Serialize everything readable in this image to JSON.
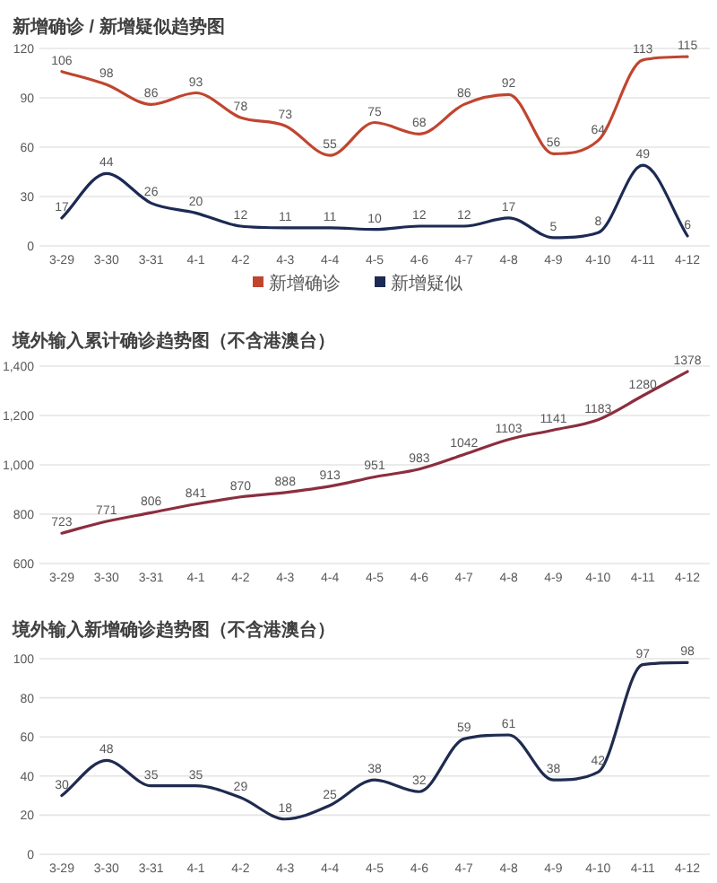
{
  "chart_data": [
    {
      "type": "line",
      "title": "新增确诊 / 新增疑似趋势图",
      "categories": [
        "3-29",
        "3-30",
        "3-31",
        "4-1",
        "4-2",
        "4-3",
        "4-4",
        "4-5",
        "4-6",
        "4-7",
        "4-8",
        "4-9",
        "4-10",
        "4-11",
        "4-12"
      ],
      "series": [
        {
          "name": "新增确诊",
          "color": "#c0452f",
          "values": [
            106,
            98,
            86,
            93,
            78,
            73,
            55,
            75,
            68,
            86,
            92,
            56,
            64,
            113,
            115
          ]
        },
        {
          "name": "新增疑似",
          "color": "#1c2a54",
          "values": [
            17,
            44,
            26,
            20,
            12,
            11,
            11,
            10,
            12,
            12,
            17,
            5,
            8,
            49,
            6
          ]
        }
      ],
      "ylim": [
        0,
        120
      ],
      "yticks": [
        0,
        30,
        60,
        90,
        120
      ],
      "grid": "y",
      "legend": "bottom",
      "data_labels": true
    },
    {
      "type": "line",
      "title": "境外输入累计确诊趋势图（不含港澳台）",
      "categories": [
        "3-29",
        "3-30",
        "3-31",
        "4-1",
        "4-2",
        "4-3",
        "4-4",
        "4-5",
        "4-6",
        "4-7",
        "4-8",
        "4-9",
        "4-10",
        "4-11",
        "4-12"
      ],
      "series": [
        {
          "color": "#8b2e3f",
          "values": [
            723,
            771,
            806,
            841,
            870,
            888,
            913,
            951,
            983,
            1042,
            1103,
            1141,
            1183,
            1280,
            1378
          ]
        }
      ],
      "ylim": [
        600,
        1400
      ],
      "yticks": [
        600,
        800,
        {
          "value": 1000,
          "label": "1,000"
        },
        {
          "value": 1200,
          "label": "1,200"
        },
        {
          "value": 1400,
          "label": "1,400"
        }
      ],
      "grid": "y",
      "data_labels": true
    },
    {
      "type": "line",
      "title": "境外输入新增确诊趋势图（不含港澳台）",
      "categories": [
        "3-29",
        "3-30",
        "3-31",
        "4-1",
        "4-2",
        "4-3",
        "4-4",
        "4-5",
        "4-6",
        "4-7",
        "4-8",
        "4-9",
        "4-10",
        "4-11",
        "4-12"
      ],
      "series": [
        {
          "color": "#1f2b4f",
          "values": [
            30,
            48,
            35,
            35,
            29,
            18,
            25,
            38,
            32,
            59,
            61,
            38,
            42,
            97,
            98
          ]
        }
      ],
      "ylim": [
        0,
        100
      ],
      "yticks": [
        0,
        20,
        40,
        60,
        80,
        100
      ],
      "grid": "y",
      "data_labels": true
    }
  ]
}
